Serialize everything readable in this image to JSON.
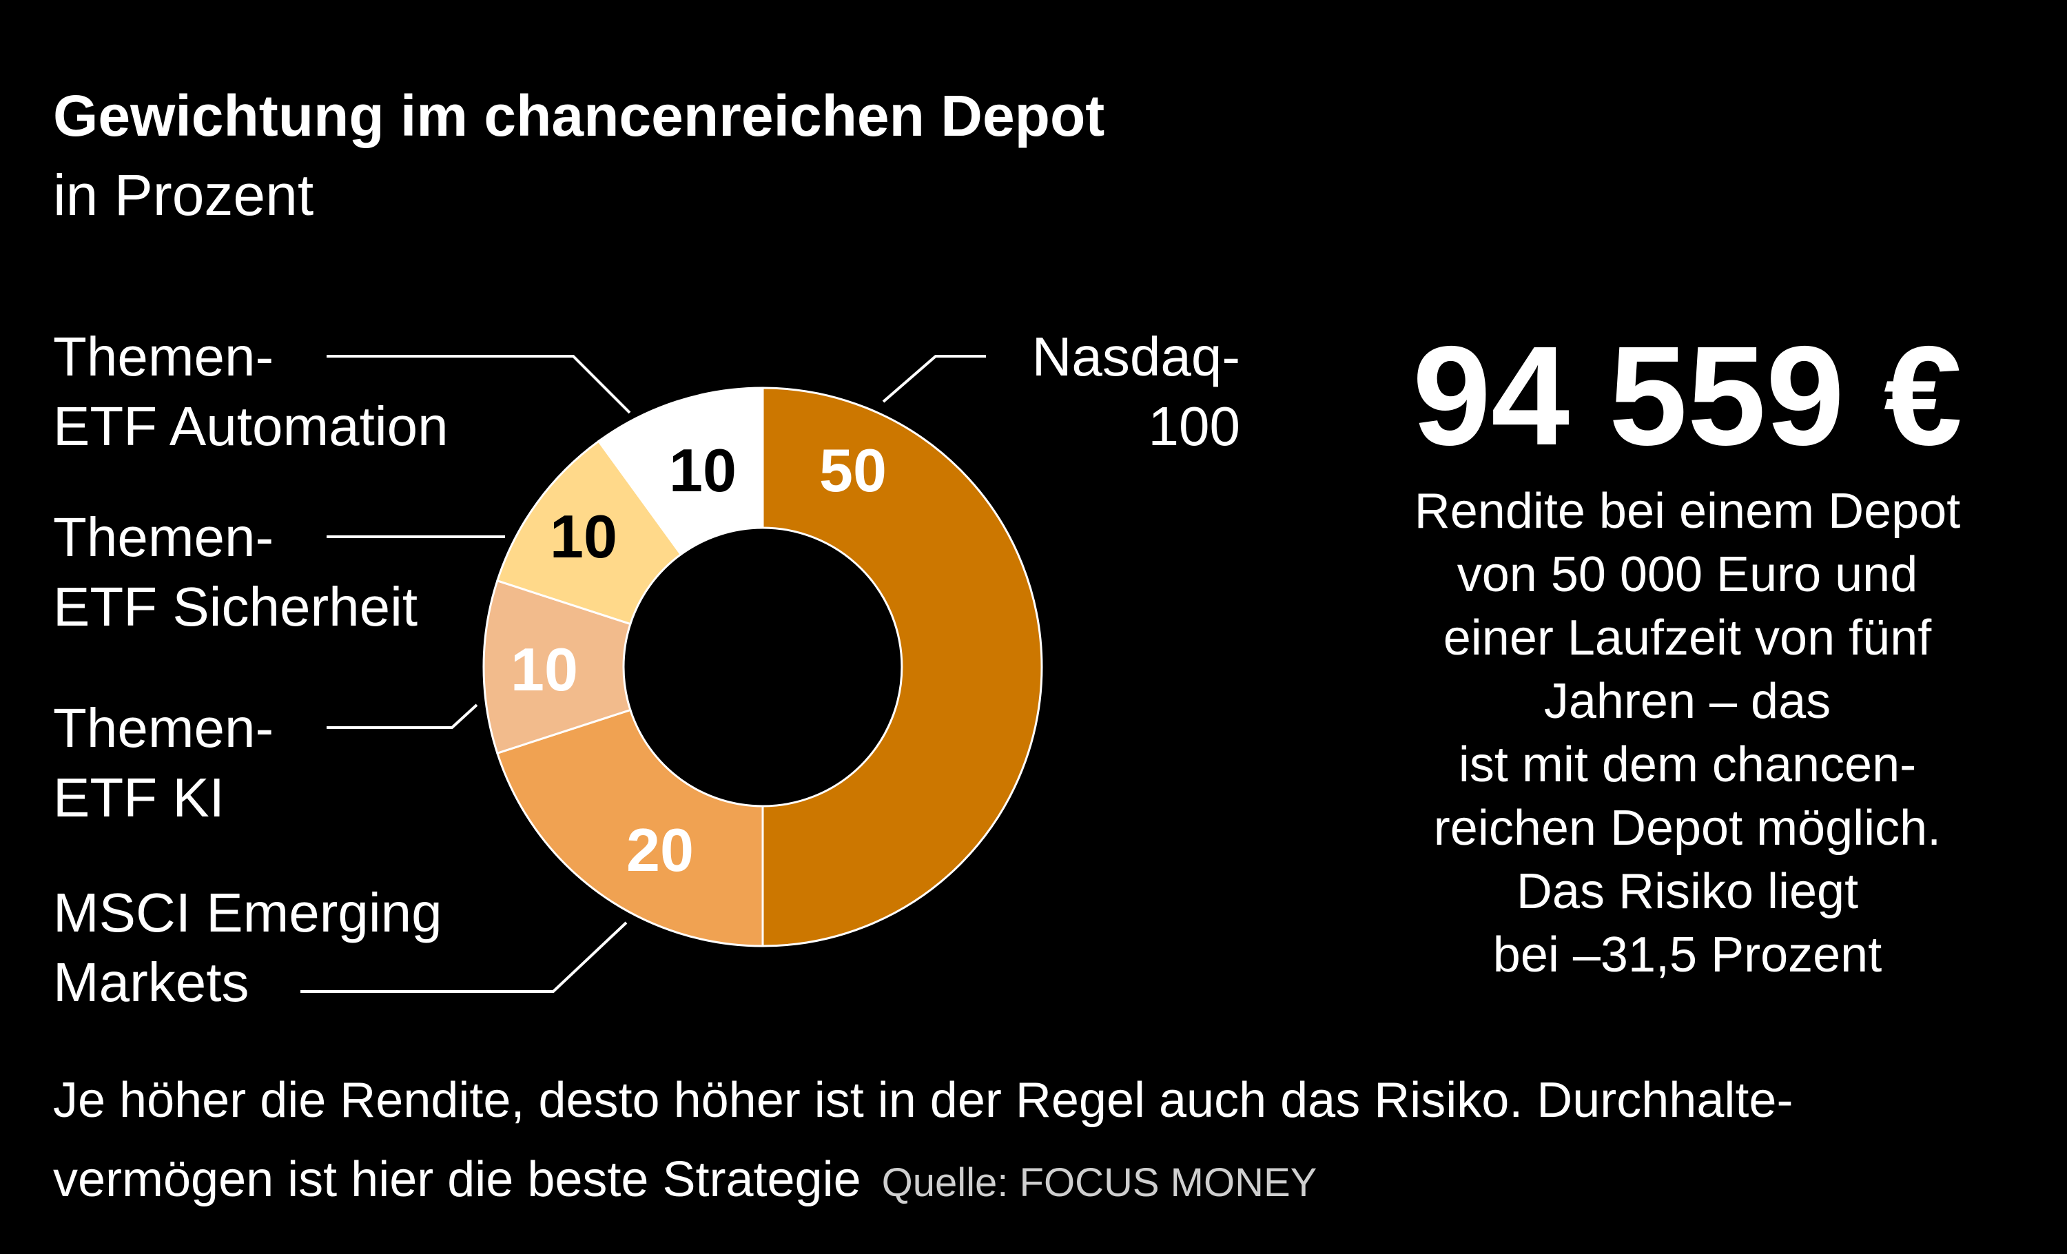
{
  "chart_data": {
    "type": "pie",
    "variant": "donut",
    "title": "Gewichtung im chancenreichen Depot",
    "subtitle": "in Prozent",
    "slices": [
      {
        "label": "Nasdaq-100",
        "label_lines": [
          "Nasdaq-",
          "100"
        ],
        "value": 50,
        "value_label": "50",
        "color": "#CC7700",
        "text_color": "#FFFFFF"
      },
      {
        "label": "MSCI Emerging Markets",
        "label_lines": [
          "MSCI Emerging",
          "Markets"
        ],
        "value": 20,
        "value_label": "20",
        "color": "#F0A252",
        "text_color": "#FFFFFF"
      },
      {
        "label": "Themen-ETF KI",
        "label_lines": [
          "Themen-",
          "ETF KI"
        ],
        "value": 10,
        "value_label": "10",
        "color": "#F2BB8C",
        "text_color": "#FFFFFF"
      },
      {
        "label": "Themen-ETF Sicherheit",
        "label_lines": [
          "Themen-",
          "ETF Sicherheit"
        ],
        "value": 10,
        "value_label": "10",
        "color": "#FFD98A",
        "text_color": "#000000"
      },
      {
        "label": "Themen-ETF Automation",
        "label_lines": [
          "Themen-",
          "ETF Automation"
        ],
        "value": 10,
        "value_label": "10",
        "color": "#FFFFFF",
        "text_color": "#000000"
      }
    ],
    "legend": "callout-labels"
  },
  "highlight": {
    "amount": "94 559 €",
    "lines": [
      "Rendite bei einem Depot",
      "von 50 000 Euro und",
      "einer Laufzeit von fünf",
      "Jahren – das",
      "ist mit dem chancen-",
      "reichen Depot möglich.",
      "Das Risiko liegt",
      "bei –31,5 Prozent"
    ]
  },
  "footer": {
    "line1": "Je höher die Rendite, desto höher ist in der Regel auch das  Risiko. Durchhalte-",
    "line2": "vermögen ist hier die beste Strategie",
    "source": "Quelle: FOCUS MONEY"
  },
  "colors": {
    "background": "#000000",
    "text": "#FFFFFF",
    "source": "#CFCFCF"
  }
}
